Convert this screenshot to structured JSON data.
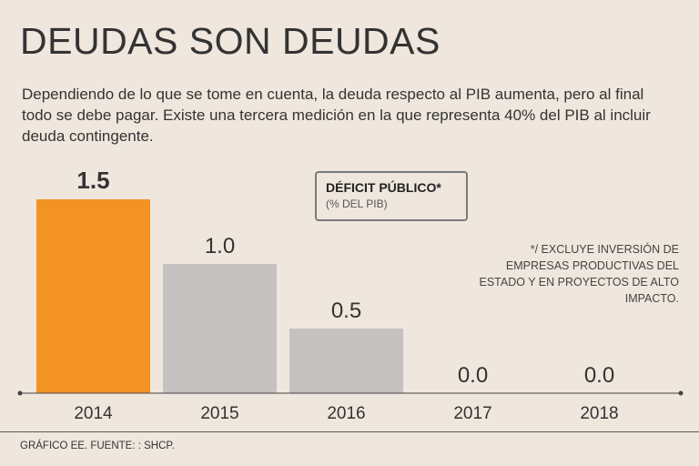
{
  "header": {
    "title": "DEUDAS SON DEUDAS",
    "subtitle": "Dependiendo de lo que se tome en cuenta, la deuda respecto al PIB aumenta, pero al final todo se debe pagar. Existe una tercera medición en la que representa 40% del PIB al incluir deuda contingente."
  },
  "legend": {
    "title": "DÉFICIT PÚBLICO*",
    "subtitle": "(% DEL PIB)"
  },
  "footnote": "*/ EXCLUYE INVERSIÓN DE EMPRESAS PRODUCTIVAS DEL ESTADO Y EN PROYECTOS DE ALTO IMPACTO.",
  "source": "GRÁFICO EE. FUENTE: : SHCP.",
  "colors": {
    "highlight": "#f39323",
    "bar": "#c6c1c1",
    "axis": "#444444"
  },
  "chart_data": {
    "type": "bar",
    "title": "DÉFICIT PÚBLICO*",
    "ylabel": "% DEL PIB",
    "xlabel": "",
    "categories": [
      "2014",
      "2015",
      "2016",
      "2017",
      "2018"
    ],
    "values": [
      1.5,
      1.0,
      0.5,
      0.0,
      0.0
    ],
    "value_labels": [
      "1.5",
      "1.0",
      "0.5",
      "0.0",
      "0.0"
    ],
    "highlight_index": 0,
    "ylim": [
      0,
      1.5
    ],
    "grid": false
  }
}
